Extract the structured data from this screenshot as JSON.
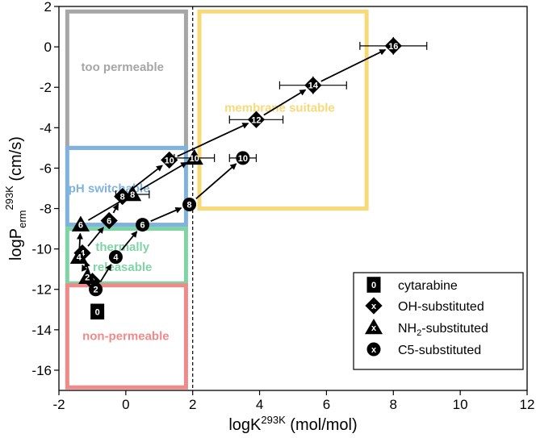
{
  "chart_data": {
    "type": "scatter",
    "xlabel": "logK²⁹³ᴷ (mol/mol)",
    "xlabel_main": "logK",
    "xlabel_sup": "293K",
    "xlabel_unit": " (mol/mol)",
    "ylabel_main": "logP",
    "ylabel_sub": "erm",
    "ylabel_sup": "293K",
    "ylabel_unit": " (cm/s)",
    "xlim": [
      -2,
      12
    ],
    "ylim": [
      -17,
      2
    ],
    "xticks": [
      -2,
      0,
      2,
      4,
      6,
      8,
      10,
      12
    ],
    "yticks": [
      2,
      0,
      -2,
      -4,
      -6,
      -8,
      -10,
      -12,
      -14,
      -16
    ],
    "xtick_labels": [
      "-2",
      "0",
      "2",
      "4",
      "6",
      "8",
      "10",
      "12"
    ],
    "ytick_labels": [
      "2",
      "0",
      "-2",
      "-4",
      "-6",
      "-8",
      "-10",
      "-12",
      "-14",
      "-16"
    ],
    "vline_x": 2,
    "regions": [
      {
        "label": "too permeable",
        "x": [
          -1.75,
          1.8
        ],
        "y": [
          -5.0,
          1.75
        ],
        "color": "#a6a6a6",
        "text_x": -0.1,
        "text_y": -1.0
      },
      {
        "label": "membrane suitable",
        "x": [
          2.2,
          7.2
        ],
        "y": [
          -8.0,
          1.75
        ],
        "color": "#f8d978",
        "text_x": 4.6,
        "text_y": -3.0
      },
      {
        "label": "pH switchable",
        "x": [
          -1.75,
          1.8
        ],
        "y": [
          -8.8,
          -5.0
        ],
        "color": "#7fb3de",
        "text_x": -0.5,
        "text_y": -7.0
      },
      {
        "label": "thermally",
        "x": [
          -1.75,
          1.8
        ],
        "y": [
          -11.7,
          -9.0
        ],
        "color": "#7fd4a6",
        "text_x": -0.1,
        "text_y": -9.9
      },
      {
        "label": "releasable",
        "x": [
          -1.75,
          1.8
        ],
        "y": [
          -11.7,
          -9.0
        ],
        "color": "#7fd4a6",
        "text_x": -0.1,
        "text_y": -10.9
      },
      {
        "label": "non-permeable",
        "x": [
          -1.75,
          1.8
        ],
        "y": [
          -16.85,
          -11.8
        ],
        "color": "#f08a8a",
        "text_x": 0.0,
        "text_y": -14.3
      }
    ],
    "series": [
      {
        "name": "cytarabine",
        "marker": "square",
        "points": [
          {
            "x": -0.85,
            "y": -13.1,
            "label": "0"
          }
        ]
      },
      {
        "name": "OH-substituted",
        "marker": "diamond",
        "points": [
          {
            "x": -1.0,
            "y": -11.6,
            "label": "2"
          },
          {
            "x": -1.3,
            "y": -10.2,
            "label": "4"
          },
          {
            "x": -0.5,
            "y": -8.6,
            "label": "6"
          },
          {
            "x": -0.1,
            "y": -7.4,
            "label": "8"
          },
          {
            "x": 1.3,
            "y": -5.6,
            "label": "10"
          },
          {
            "x": 3.9,
            "y": -3.6,
            "label": "12",
            "xerr": 0.8
          },
          {
            "x": 5.6,
            "y": -1.9,
            "label": "14",
            "xerr": 1.0
          },
          {
            "x": 8.0,
            "y": 0.05,
            "label": "16",
            "xerr": 1.0
          }
        ]
      },
      {
        "name": "NH₂-substituted",
        "marker": "triangle",
        "points": [
          {
            "x": -1.15,
            "y": -11.4,
            "label": "2"
          },
          {
            "x": -1.4,
            "y": -10.4,
            "label": "4"
          },
          {
            "x": -1.35,
            "y": -8.8,
            "label": "6"
          },
          {
            "x": 0.2,
            "y": -7.3,
            "label": "8",
            "xerr": 0.5
          },
          {
            "x": 2.05,
            "y": -5.5,
            "label": "10",
            "xerr": 0.6
          }
        ]
      },
      {
        "name": "C5-substituted",
        "marker": "circle",
        "points": [
          {
            "x": -0.9,
            "y": -12.0,
            "label": "2"
          },
          {
            "x": -0.3,
            "y": -10.4,
            "label": "4"
          },
          {
            "x": 0.5,
            "y": -8.8,
            "label": "6"
          },
          {
            "x": 1.9,
            "y": -7.8,
            "label": "8"
          },
          {
            "x": 3.5,
            "y": -5.5,
            "label": "10",
            "xerr": 0.4
          }
        ]
      }
    ],
    "legend": {
      "position": "bottom-right",
      "entries": [
        {
          "label": "cytarabine",
          "marker": "square",
          "glyph": "0"
        },
        {
          "label_main": "OH-substituted",
          "marker": "diamond",
          "glyph": "x"
        },
        {
          "label_main": "NH",
          "label_sub": "2",
          "label_rest": "-substituted",
          "marker": "triangle",
          "glyph": "x"
        },
        {
          "label_main": "C5-substituted",
          "marker": "circle",
          "glyph": "x"
        }
      ]
    }
  }
}
